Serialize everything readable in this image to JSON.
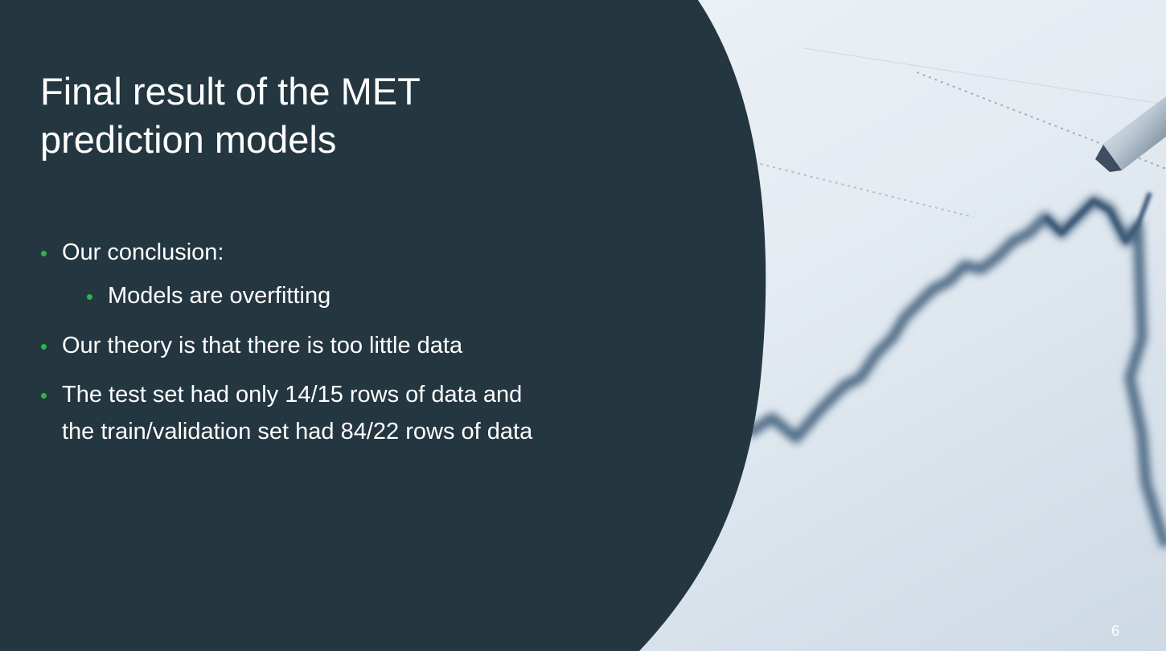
{
  "slide": {
    "title": "Final result of the MET\nprediction models",
    "bullets": [
      {
        "level": 1,
        "text": "Our conclusion:"
      },
      {
        "level": 2,
        "text": "Models are overfitting"
      },
      {
        "level": 1,
        "text": "Our theory is that there is too little data"
      },
      {
        "level": 1,
        "text": "The test set had only 14/15 rows of data and the train/validation set had 84/22 rows of data"
      }
    ],
    "page_number": "6"
  },
  "colors": {
    "panel": "#243640",
    "bullet_dot": "#2bb54b",
    "text": "#ffffff",
    "photo_base": "#dfe6ee"
  },
  "image": {
    "subject": "blurred stock market chart with pen on paper",
    "icon": "stock-chart-photo"
  }
}
